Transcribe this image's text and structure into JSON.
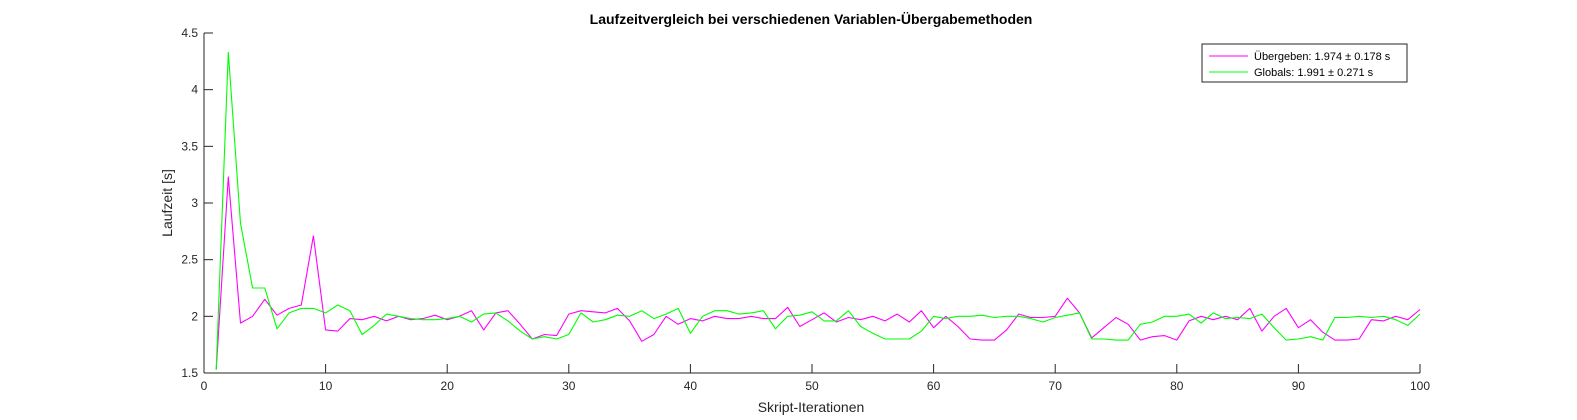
{
  "chart_data": {
    "type": "line",
    "title": "Laufzeitvergleich bei verschiedenen Variablen-Übergabemethoden",
    "xlabel": "Skript-Iterationen",
    "ylabel": "Laufzeit [s]",
    "xlim": [
      0,
      100
    ],
    "ylim": [
      1.5,
      4.5
    ],
    "xticks": [
      0,
      10,
      20,
      30,
      40,
      50,
      60,
      70,
      80,
      90,
      100
    ],
    "yticks": [
      1.5,
      2,
      2.5,
      3,
      3.5,
      4,
      4.5
    ],
    "xtick_labels": [
      "0",
      "10",
      "20",
      "30",
      "40",
      "50",
      "60",
      "70",
      "80",
      "90",
      "100"
    ],
    "ytick_labels": [
      "1.5",
      "2",
      "2.5",
      "3",
      "3.5",
      "4",
      "4.5"
    ],
    "grid": false,
    "legend_position": "top-right",
    "x": [
      1,
      2,
      3,
      4,
      5,
      6,
      7,
      8,
      9,
      10,
      11,
      12,
      13,
      14,
      15,
      16,
      17,
      18,
      19,
      20,
      21,
      22,
      23,
      24,
      25,
      26,
      27,
      28,
      29,
      30,
      31,
      32,
      33,
      34,
      35,
      36,
      37,
      38,
      39,
      40,
      41,
      42,
      43,
      44,
      45,
      46,
      47,
      48,
      49,
      50,
      51,
      52,
      53,
      54,
      55,
      56,
      57,
      58,
      59,
      60,
      61,
      62,
      63,
      64,
      65,
      66,
      67,
      68,
      69,
      70,
      71,
      72,
      73,
      74,
      75,
      76,
      77,
      78,
      79,
      80,
      81,
      82,
      83,
      84,
      85,
      86,
      87,
      88,
      89,
      90,
      91,
      92,
      93,
      94,
      95,
      96,
      97,
      98,
      99,
      100
    ],
    "series": [
      {
        "name": "Übergeben: 1.974 ± 0.178 s",
        "color": "#ff00ff",
        "values": [
          1.53,
          3.23,
          1.94,
          2.0,
          2.15,
          2.01,
          2.07,
          2.1,
          2.71,
          1.88,
          1.87,
          1.98,
          1.97,
          2.0,
          1.96,
          2.0,
          1.97,
          1.98,
          2.01,
          1.97,
          2.0,
          2.05,
          1.88,
          2.03,
          2.05,
          1.93,
          1.8,
          1.84,
          1.83,
          2.02,
          2.05,
          2.04,
          2.03,
          2.07,
          1.96,
          1.78,
          1.84,
          2.0,
          1.93,
          1.98,
          1.96,
          2.0,
          1.98,
          1.98,
          2.0,
          1.98,
          1.98,
          2.08,
          1.91,
          1.97,
          2.03,
          1.95,
          1.99,
          1.97,
          2.0,
          1.96,
          2.02,
          1.95,
          2.05,
          1.9,
          2.0,
          1.91,
          1.8,
          1.79,
          1.79,
          1.88,
          2.02,
          1.99,
          1.99,
          2.0,
          2.16,
          2.03,
          1.81,
          1.9,
          1.99,
          1.93,
          1.79,
          1.82,
          1.83,
          1.79,
          1.96,
          2.0,
          1.97,
          2.0,
          1.97,
          2.07,
          1.87,
          2.0,
          2.07,
          1.9,
          1.97,
          1.86,
          1.79,
          1.79,
          1.8,
          1.97,
          1.96,
          2.0,
          1.97,
          2.06
        ]
      },
      {
        "name": "Globals: 1.991 ± 0.271 s",
        "color": "#00ff00",
        "values": [
          1.53,
          4.33,
          2.82,
          2.25,
          2.25,
          1.89,
          2.03,
          2.07,
          2.07,
          2.03,
          2.1,
          2.05,
          1.84,
          1.92,
          2.02,
          2.0,
          1.98,
          1.97,
          1.97,
          1.98,
          2.0,
          1.95,
          2.02,
          2.03,
          1.96,
          1.87,
          1.8,
          1.82,
          1.8,
          1.84,
          2.03,
          1.95,
          1.97,
          2.01,
          2.0,
          2.05,
          1.98,
          2.02,
          2.07,
          1.85,
          2.0,
          2.05,
          2.05,
          2.02,
          2.03,
          2.05,
          1.89,
          2.0,
          2.01,
          2.04,
          1.96,
          1.96,
          2.05,
          1.91,
          1.85,
          1.8,
          1.8,
          1.8,
          1.87,
          2.0,
          1.98,
          2.0,
          2.0,
          2.01,
          1.99,
          2.0,
          2.0,
          1.98,
          1.95,
          1.99,
          2.01,
          2.03,
          1.8,
          1.8,
          1.79,
          1.79,
          1.93,
          1.95,
          2.0,
          2.0,
          2.02,
          1.94,
          2.03,
          1.98,
          1.99,
          1.98,
          2.02,
          1.9,
          1.79,
          1.8,
          1.82,
          1.79,
          1.99,
          1.99,
          2.0,
          1.99,
          2.0,
          1.97,
          1.92,
          2.02
        ]
      }
    ]
  }
}
